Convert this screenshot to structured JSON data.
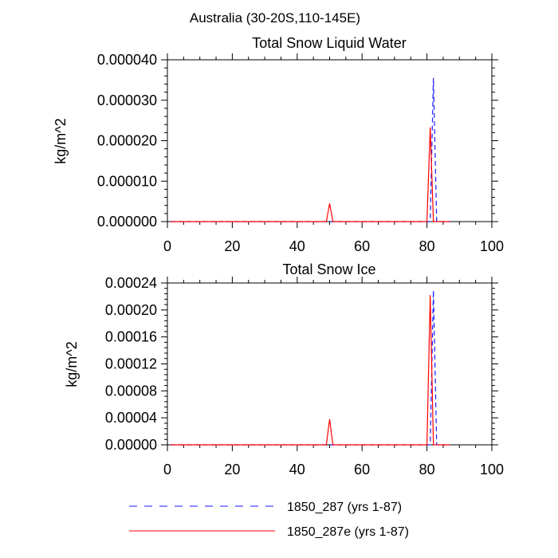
{
  "figure": {
    "title": "Australia (30-20S,110-145E)",
    "line_colors": {
      "blue": "#1a1aff",
      "red": "#ff0000"
    }
  },
  "legend": {
    "placement": "bottom-center",
    "entries": [
      {
        "label": "1850_287 (yrs 1-87)",
        "color": "#1a1aff",
        "dash": "dashed"
      },
      {
        "label": "1850_287e (yrs 1-87)",
        "color": "#ff0000",
        "dash": "solid"
      }
    ]
  },
  "chart_data": [
    {
      "type": "line",
      "title": "Total Snow Liquid Water",
      "xlabel": "",
      "ylabel": "kg/m^2",
      "xlim": [
        0,
        100
      ],
      "ylim": [
        0,
        4e-05
      ],
      "xticks": [
        0,
        20,
        40,
        60,
        80,
        100
      ],
      "xtick_labels": [
        "0",
        "20",
        "40",
        "60",
        "80",
        "100"
      ],
      "yticks": [
        0,
        1e-05,
        2e-05,
        3e-05,
        4e-05
      ],
      "ytick_labels": [
        "0.000000",
        "0.000010",
        "0.000020",
        "0.000030",
        "0.000040"
      ],
      "grid": false,
      "series": [
        {
          "name": "1850_287 (yrs 1-87)",
          "color": "#1a1aff",
          "dash": "dashed",
          "x": [
            1,
            80,
            81,
            82,
            83,
            87
          ],
          "y": [
            0,
            0,
            0,
            3.55e-05,
            0,
            0
          ]
        },
        {
          "name": "1850_287e (yrs 1-87)",
          "color": "#ff0000",
          "dash": "solid",
          "x": [
            1,
            49,
            50,
            51,
            79,
            80,
            81,
            82,
            87
          ],
          "y": [
            0,
            0,
            4.5e-06,
            0,
            0,
            0,
            2.33e-05,
            0,
            0
          ]
        }
      ]
    },
    {
      "type": "line",
      "title": "Total Snow Ice",
      "xlabel": "",
      "ylabel": "kg/m^2",
      "xlim": [
        0,
        100
      ],
      "ylim": [
        0,
        0.00024
      ],
      "xticks": [
        0,
        20,
        40,
        60,
        80,
        100
      ],
      "xtick_labels": [
        "0",
        "20",
        "40",
        "60",
        "80",
        "100"
      ],
      "yticks": [
        0,
        4e-05,
        8e-05,
        0.00012,
        0.00016,
        0.0002,
        0.00024
      ],
      "ytick_labels": [
        "0.00000",
        "0.00004",
        "0.00008",
        "0.00012",
        "0.00016",
        "0.00020",
        "0.00024"
      ],
      "grid": false,
      "series": [
        {
          "name": "1850_287 (yrs 1-87)",
          "color": "#1a1aff",
          "dash": "dashed",
          "x": [
            1,
            80,
            81,
            82,
            83,
            87
          ],
          "y": [
            0,
            0,
            0,
            0.000229,
            0,
            0
          ]
        },
        {
          "name": "1850_287e (yrs 1-87)",
          "color": "#ff0000",
          "dash": "solid",
          "x": [
            1,
            49,
            50,
            51,
            79,
            80,
            81,
            82,
            87
          ],
          "y": [
            0,
            0,
            3.8e-05,
            0,
            0,
            0,
            0.000222,
            0,
            0
          ]
        }
      ]
    }
  ]
}
